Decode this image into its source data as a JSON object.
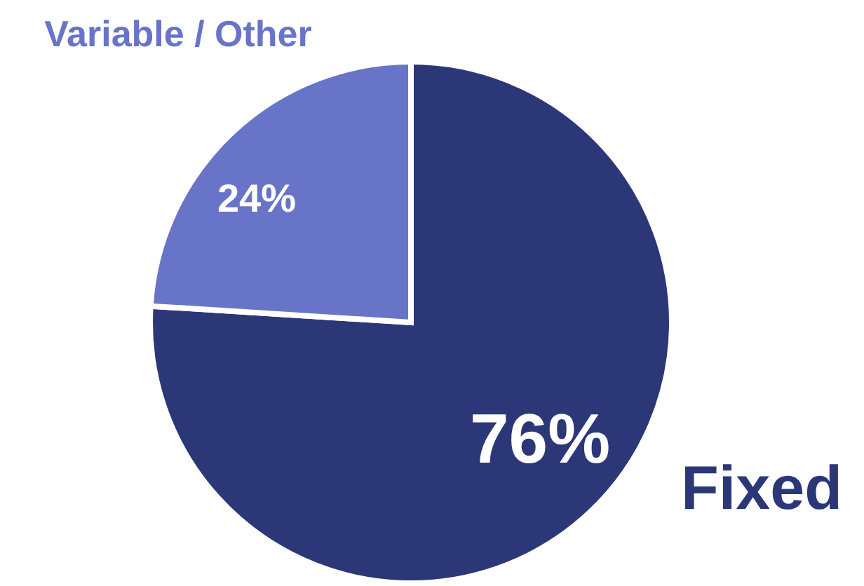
{
  "chart_data": {
    "type": "pie",
    "categories": [
      "Fixed",
      "Variable / Other"
    ],
    "values": [
      76,
      24
    ],
    "colors": [
      "#2c3778",
      "#6874c8"
    ],
    "value_labels": [
      "76%",
      "24%"
    ],
    "legend": false
  }
}
